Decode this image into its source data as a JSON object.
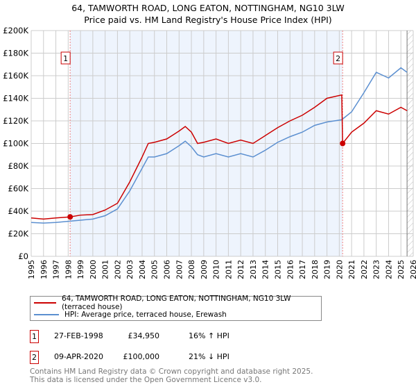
{
  "title": "64, TAMWORTH ROAD, LONG EATON, NOTTINGHAM, NG10 3LW",
  "subtitle": "Price paid vs. HM Land Registry's House Price Index (HPI)",
  "chart_data": {
    "type": "line",
    "xlim": [
      1995,
      2026
    ],
    "ylim": [
      0,
      200000
    ],
    "x_ticks": [
      "1995",
      "1996",
      "1997",
      "1998",
      "1999",
      "2000",
      "2001",
      "2002",
      "2003",
      "2004",
      "2005",
      "2006",
      "2007",
      "2008",
      "2009",
      "2010",
      "2011",
      "2012",
      "2013",
      "2014",
      "2015",
      "2016",
      "2017",
      "2018",
      "2019",
      "2020",
      "2021",
      "2022",
      "2023",
      "2024",
      "2025",
      "2026"
    ],
    "y_ticks": [
      "£0",
      "£20K",
      "£40K",
      "£60K",
      "£80K",
      "£100K",
      "£120K",
      "£140K",
      "£160K",
      "£180K",
      "£200K"
    ],
    "grid": true,
    "shaded_range": [
      1998.16,
      2020.27
    ],
    "forecast_hatch_from": 2025.5,
    "series": [
      {
        "name": "64, TAMWORTH ROAD, LONG EATON, NOTTINGHAM, NG10 3LW (terraced house)",
        "color": "#cc0000",
        "x": [
          1995,
          1996,
          1997,
          1998.16,
          1999,
          2000,
          2001,
          2002,
          2003,
          2004,
          2004.5,
          2005,
          2006,
          2007,
          2007.5,
          2008,
          2008.5,
          2009,
          2010,
          2011,
          2012,
          2013,
          2014,
          2015,
          2016,
          2017,
          2018,
          2019,
          2020.2,
          2020.27,
          2021,
          2022,
          2023,
          2024,
          2025,
          2025.5
        ],
        "y": [
          34000,
          33000,
          34000,
          34950,
          36500,
          37000,
          41000,
          47000,
          66000,
          88000,
          100000,
          101000,
          104000,
          111000,
          115000,
          110000,
          100000,
          101000,
          104000,
          100000,
          103000,
          100000,
          107000,
          114000,
          120000,
          125000,
          132000,
          140000,
          143000,
          100000,
          110000,
          118000,
          129000,
          126000,
          132000,
          129000
        ]
      },
      {
        "name": "HPI: Average price, terraced house, Erewash",
        "color": "#5b8fd0",
        "x": [
          1995,
          1996,
          1997,
          1998,
          1999,
          2000,
          2001,
          2002,
          2003,
          2004,
          2004.5,
          2005,
          2006,
          2007,
          2007.5,
          2008,
          2008.5,
          2009,
          2010,
          2011,
          2012,
          2013,
          2014,
          2015,
          2016,
          2017,
          2018,
          2019,
          2020.2,
          2021,
          2022,
          2023,
          2024,
          2025,
          2025.5
        ],
        "y": [
          30000,
          29500,
          30000,
          31000,
          32000,
          33000,
          36000,
          42000,
          58000,
          78000,
          88000,
          88000,
          91000,
          98000,
          102000,
          97000,
          90000,
          88000,
          91000,
          88000,
          91000,
          88000,
          94000,
          101000,
          106000,
          110000,
          116000,
          119000,
          121000,
          128000,
          145000,
          163000,
          158000,
          167000,
          163000
        ]
      }
    ],
    "sales": [
      {
        "label": "1",
        "x": 1998.16,
        "y": 34950
      },
      {
        "label": "2",
        "x": 2020.27,
        "y": 100000
      }
    ]
  },
  "legend": {
    "property": "64, TAMWORTH ROAD, LONG EATON, NOTTINGHAM, NG10 3LW (terraced house)",
    "hpi": "HPI: Average price, terraced house, Erewash"
  },
  "sales_table": [
    {
      "num": "1",
      "date": "27-FEB-1998",
      "price": "£34,950",
      "hpi": "16% ↑ HPI"
    },
    {
      "num": "2",
      "date": "09-APR-2020",
      "price": "£100,000",
      "hpi": "21% ↓ HPI"
    }
  ],
  "footer": {
    "line1": "Contains HM Land Registry data © Crown copyright and database right 2025.",
    "line2": "This data is licensed under the Open Government Licence v3.0."
  }
}
